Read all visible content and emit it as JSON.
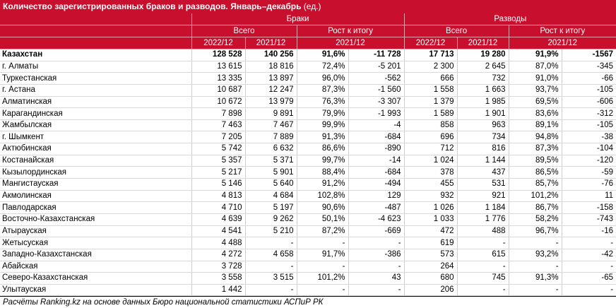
{
  "title": {
    "bold": "Количество зарегистрированных браков и разводов. Январь–декабрь",
    "unit": " (ед.)"
  },
  "header": {
    "group_marriages": "Браки",
    "group_divorces": "Разводы",
    "total": "Всего",
    "growth": "Рост к итогу",
    "y2022": "2022/12",
    "y2021": "2021/12"
  },
  "rows": [
    {
      "name": "Казахстан",
      "m22": "128 528",
      "m21": "140 256",
      "mp": "91,6%",
      "md": "-11 728",
      "d22": "17 713",
      "d21": "19 280",
      "dp": "91,9%",
      "dd": "-1567"
    },
    {
      "name": "г. Алматы",
      "m22": "13 615",
      "m21": "18 816",
      "mp": "72,4%",
      "md": "-5 201",
      "d22": "2 300",
      "d21": "2 645",
      "dp": "87,0%",
      "dd": "-345"
    },
    {
      "name": "Туркестанская",
      "m22": "13 335",
      "m21": "13 897",
      "mp": "96,0%",
      "md": "-562",
      "d22": "666",
      "d21": "732",
      "dp": "91,0%",
      "dd": "-66"
    },
    {
      "name": "г. Астана",
      "m22": "10 687",
      "m21": "12 247",
      "mp": "87,3%",
      "md": "-1 560",
      "d22": "1 558",
      "d21": "1 663",
      "dp": "93,7%",
      "dd": "-105"
    },
    {
      "name": "Алматинская",
      "m22": "10 672",
      "m21": "13 979",
      "mp": "76,3%",
      "md": "-3 307",
      "d22": "1 379",
      "d21": "1 985",
      "dp": "69,5%",
      "dd": "-606"
    },
    {
      "name": "Карагандинская",
      "m22": "7 898",
      "m21": "9 891",
      "mp": "79,9%",
      "md": "-1 993",
      "d22": "1 589",
      "d21": "1 901",
      "dp": "83,6%",
      "dd": "-312"
    },
    {
      "name": "Жамбылская",
      "m22": "7 463",
      "m21": "7 467",
      "mp": "99,9%",
      "md": "-4",
      "d22": "858",
      "d21": "963",
      "dp": "89,1%",
      "dd": "-105"
    },
    {
      "name": "г. Шымкент",
      "m22": "7 205",
      "m21": "7 889",
      "mp": "91,3%",
      "md": "-684",
      "d22": "696",
      "d21": "734",
      "dp": "94,8%",
      "dd": "-38"
    },
    {
      "name": "Актюбинская",
      "m22": "5 742",
      "m21": "6 632",
      "mp": "86,6%",
      "md": "-890",
      "d22": "712",
      "d21": "816",
      "dp": "87,3%",
      "dd": "-104"
    },
    {
      "name": "Костанайская",
      "m22": "5 357",
      "m21": "5 371",
      "mp": "99,7%",
      "md": "-14",
      "d22": "1 024",
      "d21": "1 144",
      "dp": "89,5%",
      "dd": "-120"
    },
    {
      "name": "Кызылординская",
      "m22": "5 217",
      "m21": "5 901",
      "mp": "88,4%",
      "md": "-684",
      "d22": "378",
      "d21": "437",
      "dp": "86,5%",
      "dd": "-59"
    },
    {
      "name": "Мангистауская",
      "m22": "5 146",
      "m21": "5 640",
      "mp": "91,2%",
      "md": "-494",
      "d22": "455",
      "d21": "531",
      "dp": "85,7%",
      "dd": "-76"
    },
    {
      "name": "Акмолинская",
      "m22": "4 813",
      "m21": "4 684",
      "mp": "102,8%",
      "md": "129",
      "d22": "932",
      "d21": "921",
      "dp": "101,2%",
      "dd": "11"
    },
    {
      "name": "Павлодарская",
      "m22": "4 710",
      "m21": "5 197",
      "mp": "90,6%",
      "md": "-487",
      "d22": "1 026",
      "d21": "1 184",
      "dp": "86,7%",
      "dd": "-158"
    },
    {
      "name": "Восточно-Казахстанская",
      "m22": "4 639",
      "m21": "9 262",
      "mp": "50,1%",
      "md": "-4 623",
      "d22": "1 033",
      "d21": "1 776",
      "dp": "58,2%",
      "dd": "-743"
    },
    {
      "name": "Атырауская",
      "m22": "4 541",
      "m21": "5 210",
      "mp": "87,2%",
      "md": "-669",
      "d22": "472",
      "d21": "488",
      "dp": "96,7%",
      "dd": "-16"
    },
    {
      "name": "Жетысуская",
      "m22": "4 488",
      "m21": "-",
      "mp": "-",
      "md": "-",
      "d22": "619",
      "d21": "-",
      "dp": "-",
      "dd": "-"
    },
    {
      "name": "Западно-Казахстанская",
      "m22": "4 272",
      "m21": "4 658",
      "mp": "91,7%",
      "md": "-386",
      "d22": "573",
      "d21": "615",
      "dp": "93,2%",
      "dd": "-42"
    },
    {
      "name": "Абайская",
      "m22": "3 728",
      "m21": "-",
      "mp": "-",
      "md": "-",
      "d22": "264",
      "d21": "-",
      "dp": "-",
      "dd": "-"
    },
    {
      "name": "Северо-Казахстанская",
      "m22": "3 558",
      "m21": "3 515",
      "mp": "101,2%",
      "md": "43",
      "d22": "680",
      "d21": "745",
      "dp": "91,3%",
      "dd": "-65"
    },
    {
      "name": "Улытауская",
      "m22": "1 442",
      "m21": "-",
      "mp": "-",
      "md": "-",
      "d22": "206",
      "d21": "-",
      "dp": "-",
      "dd": "-"
    }
  ],
  "footer": "Расчёты Ranking.kz на основе данных Бюро национальной статистики АСПиР РК",
  "colors": {
    "header_bg": "#c8102e",
    "header_text": "#ffffff"
  }
}
